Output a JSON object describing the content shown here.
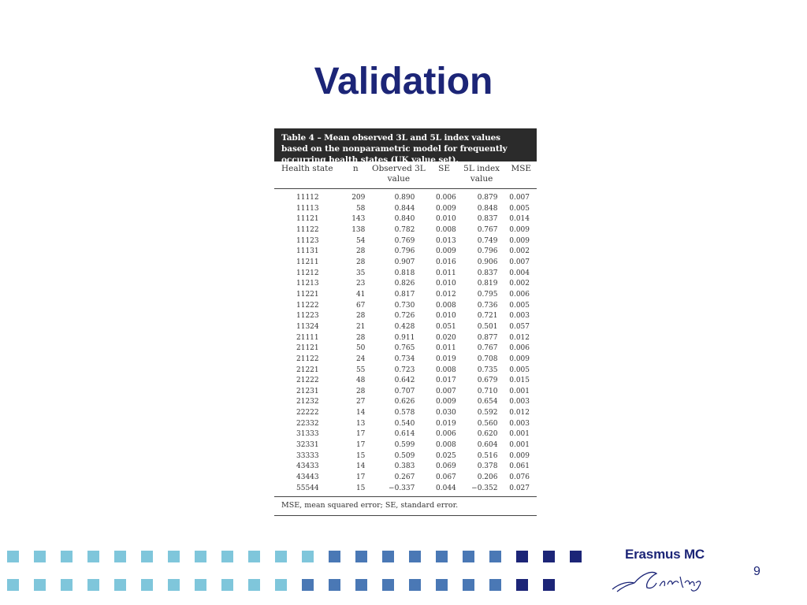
{
  "slide": {
    "title": "Validation",
    "page_number": "9"
  },
  "table": {
    "caption": "Table 4 – Mean observed 3L and 5L index values based on the nonparametric model for frequently occurring health states (UK value set).",
    "headers": [
      "Health state",
      "n",
      "Observed 3L value",
      "SE",
      "5L index value",
      "MSE"
    ],
    "rows": [
      [
        "11112",
        "209",
        "0.890",
        "0.006",
        "0.879",
        "0.007"
      ],
      [
        "11113",
        "58",
        "0.844",
        "0.009",
        "0.848",
        "0.005"
      ],
      [
        "11121",
        "143",
        "0.840",
        "0.010",
        "0.837",
        "0.014"
      ],
      [
        "11122",
        "138",
        "0.782",
        "0.008",
        "0.767",
        "0.009"
      ],
      [
        "11123",
        "54",
        "0.769",
        "0.013",
        "0.749",
        "0.009"
      ],
      [
        "11131",
        "28",
        "0.796",
        "0.009",
        "0.796",
        "0.002"
      ],
      [
        "11211",
        "28",
        "0.907",
        "0.016",
        "0.906",
        "0.007"
      ],
      [
        "11212",
        "35",
        "0.818",
        "0.011",
        "0.837",
        "0.004"
      ],
      [
        "11213",
        "23",
        "0.826",
        "0.010",
        "0.819",
        "0.002"
      ],
      [
        "11221",
        "41",
        "0.817",
        "0.012",
        "0.795",
        "0.006"
      ],
      [
        "11222",
        "67",
        "0.730",
        "0.008",
        "0.736",
        "0.005"
      ],
      [
        "11223",
        "28",
        "0.726",
        "0.010",
        "0.721",
        "0.003"
      ],
      [
        "11324",
        "21",
        "0.428",
        "0.051",
        "0.501",
        "0.057"
      ],
      [
        "21111",
        "28",
        "0.911",
        "0.020",
        "0.877",
        "0.012"
      ],
      [
        "21121",
        "50",
        "0.765",
        "0.011",
        "0.767",
        "0.006"
      ],
      [
        "21122",
        "24",
        "0.734",
        "0.019",
        "0.708",
        "0.009"
      ],
      [
        "21221",
        "55",
        "0.723",
        "0.008",
        "0.735",
        "0.005"
      ],
      [
        "21222",
        "48",
        "0.642",
        "0.017",
        "0.679",
        "0.015"
      ],
      [
        "21231",
        "28",
        "0.707",
        "0.007",
        "0.710",
        "0.001"
      ],
      [
        "21232",
        "27",
        "0.626",
        "0.009",
        "0.654",
        "0.003"
      ],
      [
        "22222",
        "14",
        "0.578",
        "0.030",
        "0.592",
        "0.012"
      ],
      [
        "22332",
        "13",
        "0.540",
        "0.019",
        "0.560",
        "0.003"
      ],
      [
        "31333",
        "17",
        "0.614",
        "0.006",
        "0.620",
        "0.001"
      ],
      [
        "32331",
        "17",
        "0.599",
        "0.008",
        "0.604",
        "0.001"
      ],
      [
        "33333",
        "15",
        "0.509",
        "0.025",
        "0.516",
        "0.009"
      ],
      [
        "43433",
        "14",
        "0.383",
        "0.069",
        "0.378",
        "0.061"
      ],
      [
        "43443",
        "17",
        "0.267",
        "0.067",
        "0.206",
        "0.076"
      ],
      [
        "55544",
        "15",
        "−0.337",
        "0.044",
        "−0.352",
        "0.027"
      ]
    ],
    "footnote": "MSE, mean squared error; SE, standard error."
  },
  "footer": {
    "logo_text": "Erasmus MC",
    "logo_signature_icon": "erasmus-signature",
    "colors": {
      "light": "#7fc6db",
      "medium": "#4a78b5",
      "dark": "#1c2577"
    },
    "row1": [
      "light",
      "light",
      "light",
      "light",
      "light",
      "light",
      "light",
      "light",
      "light",
      "light",
      "light",
      "light",
      "medium",
      "medium",
      "medium",
      "medium",
      "medium",
      "medium",
      "medium",
      "dark",
      "dark",
      "dark"
    ],
    "row2": [
      "light",
      "light",
      "light",
      "light",
      "light",
      "light",
      "light",
      "light",
      "light",
      "light",
      "light",
      "medium",
      "medium",
      "medium",
      "medium",
      "medium",
      "medium",
      "medium",
      "medium",
      "dark",
      "dark"
    ]
  }
}
